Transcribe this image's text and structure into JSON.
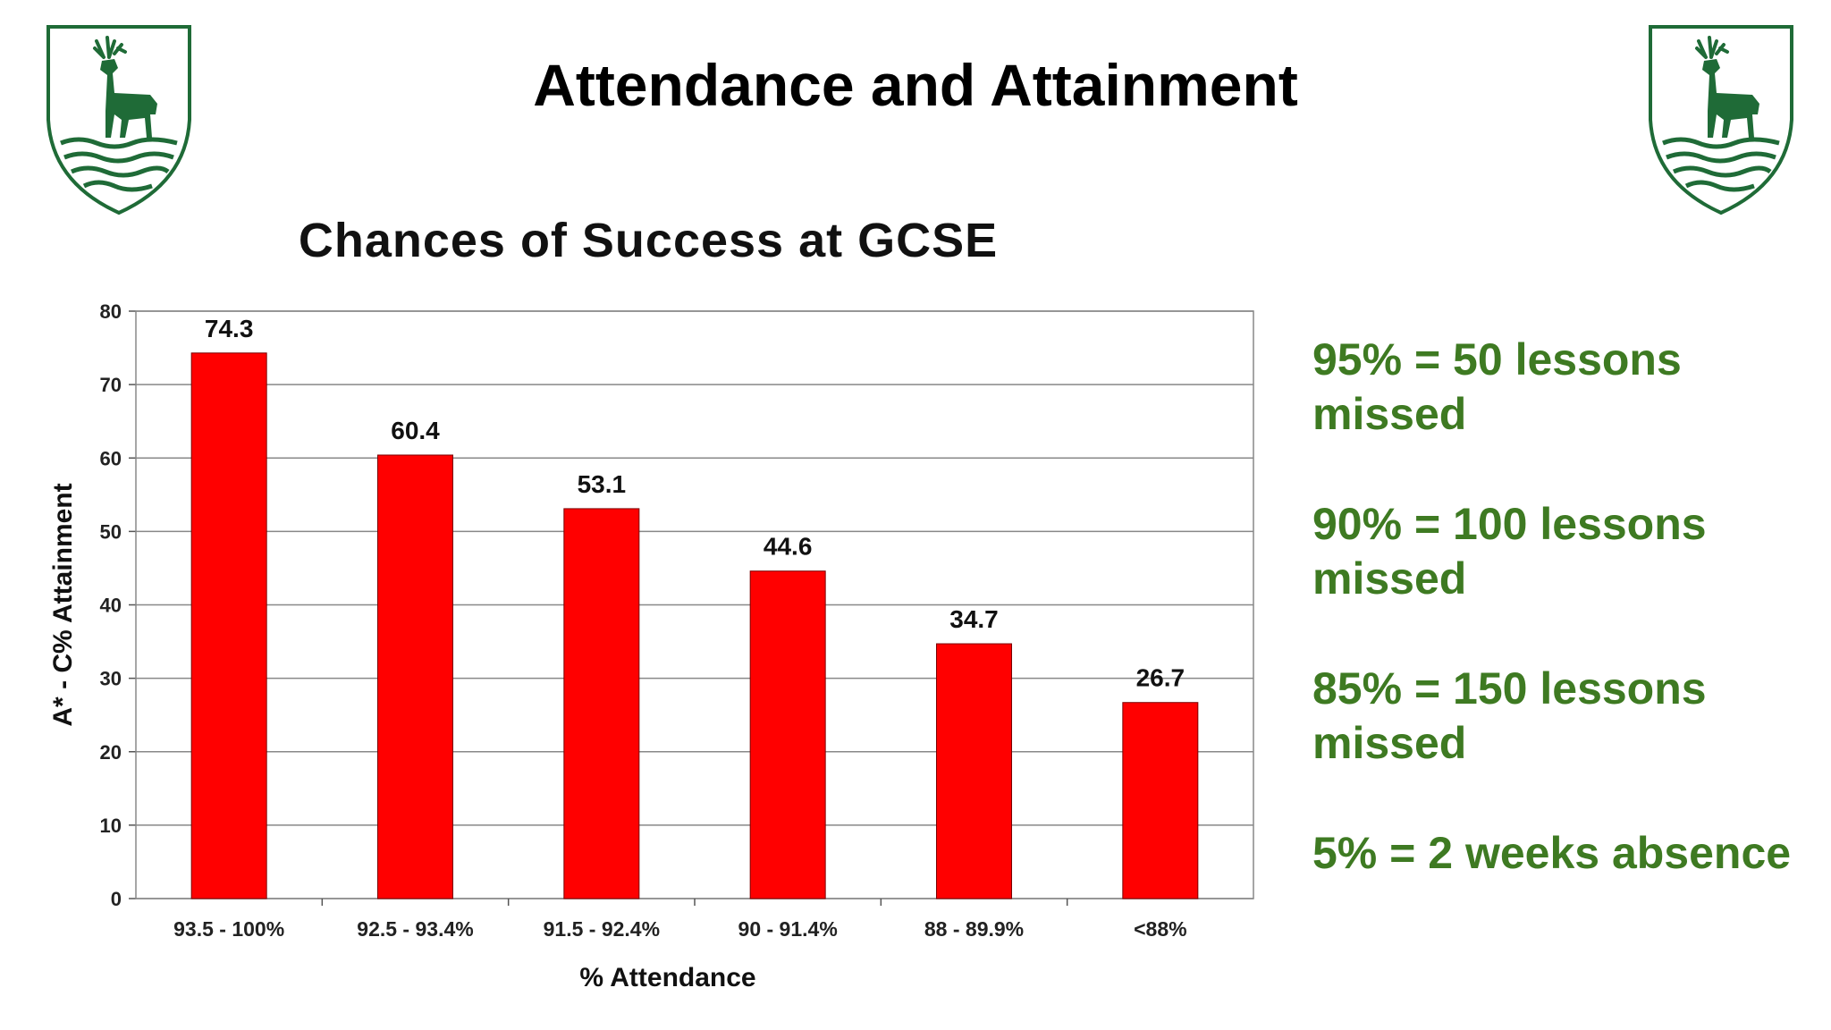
{
  "slide": {
    "title": "Attendance and Attainment",
    "accent_green": "#3e7a22",
    "crest_green": "#1f6b37"
  },
  "crests": {
    "left_icon": "stag-crest-icon",
    "right_icon": "stag-crest-icon"
  },
  "chart_data": {
    "type": "bar",
    "title": "Chances of Success at GCSE",
    "xlabel": "% Attendance",
    "ylabel": "A* - C% Attainment",
    "categories": [
      "93.5 - 100%",
      "92.5 - 93.4%",
      "91.5 - 92.4%",
      "90 - 91.4%",
      "88 - 89.9%",
      "<88%"
    ],
    "values": [
      74.3,
      60.4,
      53.1,
      44.6,
      34.7,
      26.7
    ],
    "data_labels": [
      "74.3",
      "60.4",
      "53.1",
      "44.6",
      "34.7",
      "26.7"
    ],
    "ylim": [
      0,
      80
    ],
    "yticks": [
      0,
      10,
      20,
      30,
      40,
      50,
      60,
      70,
      80
    ],
    "grid": true,
    "legend": "none",
    "bar_color": "#ff0000"
  },
  "notes": [
    "95% = 50 lessons missed",
    "90% = 100 lessons missed",
    "85% = 150 lessons missed",
    "5% = 2 weeks absence"
  ]
}
